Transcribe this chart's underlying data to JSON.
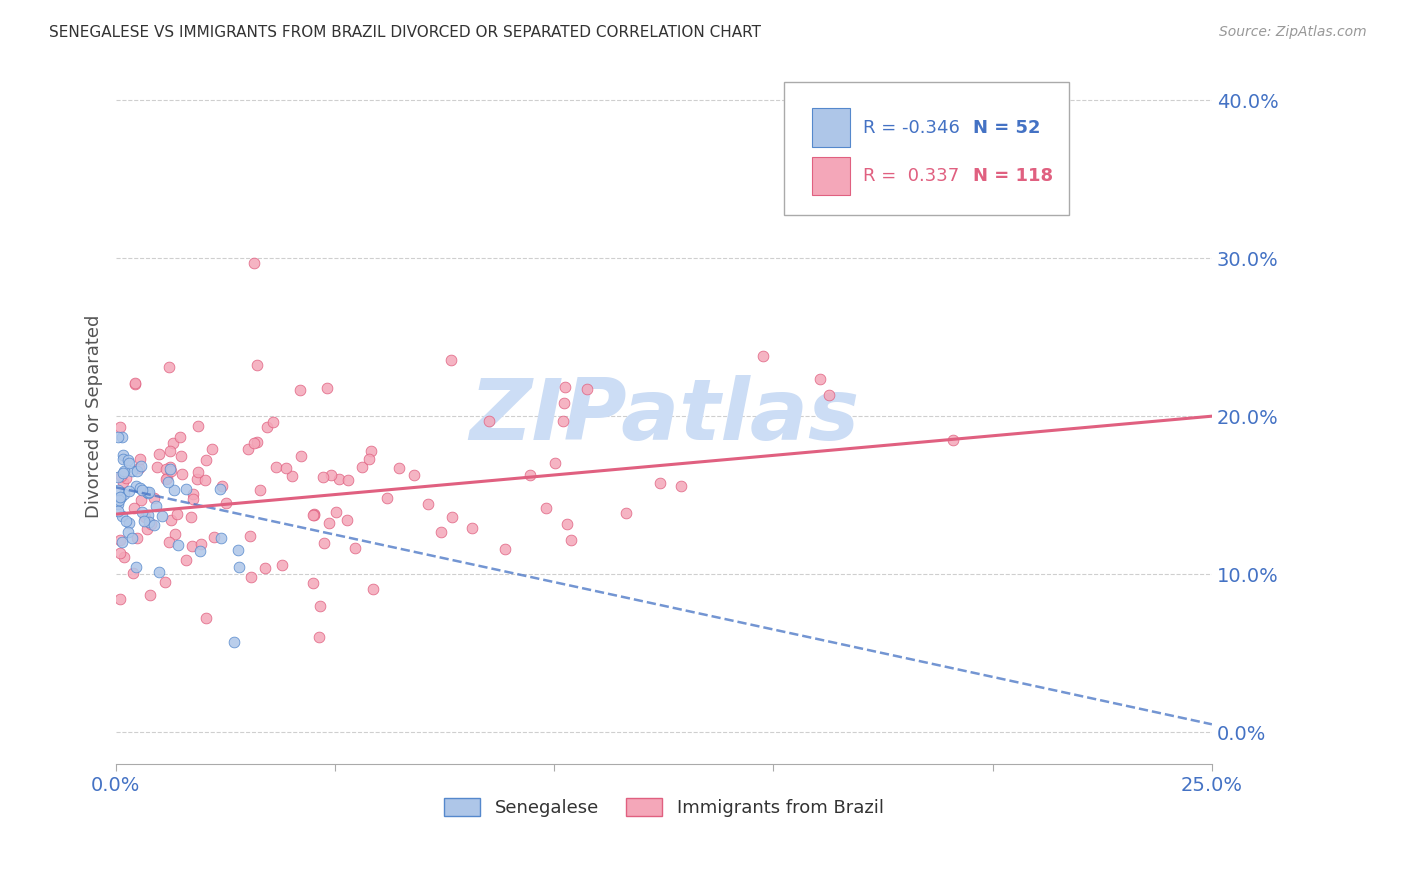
{
  "title": "SENEGALESE VS IMMIGRANTS FROM BRAZIL DIVORCED OR SEPARATED CORRELATION CHART",
  "source": "Source: ZipAtlas.com",
  "ylabel": "Divorced or Separated",
  "xlim": [
    0.0,
    0.25
  ],
  "ylim": [
    -0.02,
    0.42
  ],
  "yticks": [
    0.0,
    0.1,
    0.2,
    0.3,
    0.4
  ],
  "xticks": [
    0.0,
    0.25
  ],
  "background_color": "#ffffff",
  "grid_color": "#bbbbbb",
  "series1_color": "#aec6e8",
  "series1_edge": "#5588cc",
  "series1_label": "Senegalese",
  "series1_R": "-0.346",
  "series1_N": "52",
  "series1_line_color": "#4472c4",
  "series2_color": "#f4a7b9",
  "series2_edge": "#e06080",
  "series2_label": "Immigrants from Brazil",
  "series2_R": "0.337",
  "series2_N": "118",
  "series2_line_color": "#e06080",
  "watermark": "ZIPatlas",
  "watermark_color": "#ccddf5",
  "legend_R1": "R = -0.346",
  "legend_N1": "N =  52",
  "legend_R2": "R =  0.337",
  "legend_N2": "N = 118"
}
